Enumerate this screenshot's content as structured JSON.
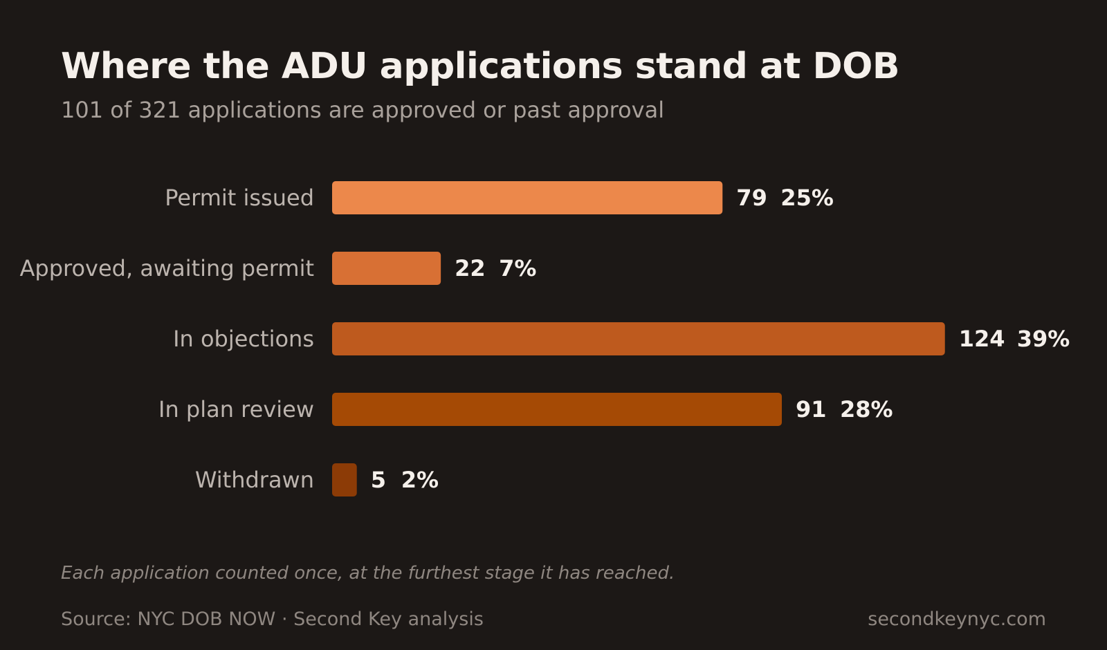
{
  "title": "Where the ADU applications stand at DOB",
  "subtitle": "101 of 321 applications are approved or past approval",
  "footnote": "Each application counted once, at the furthest stage it has reached.",
  "source": "Source: NYC DOB NOW · Second Key analysis",
  "site": "secondkeynyc.com",
  "chart_data": {
    "type": "bar",
    "orientation": "horizontal",
    "categories": [
      "Permit issued",
      "Approved, awaiting permit",
      "In objections",
      "In plan review",
      "Withdrawn"
    ],
    "values": [
      79,
      22,
      124,
      91,
      5
    ],
    "value_labels": [
      "79",
      "22",
      "124",
      "91",
      "5"
    ],
    "percent_labels": [
      "25%",
      "7%",
      "39%",
      "28%",
      "2%"
    ],
    "colors": [
      "#ec884b",
      "#d87034",
      "#be5a1e",
      "#a54a05",
      "#8c3b06"
    ],
    "grid": false,
    "legend": "none"
  }
}
